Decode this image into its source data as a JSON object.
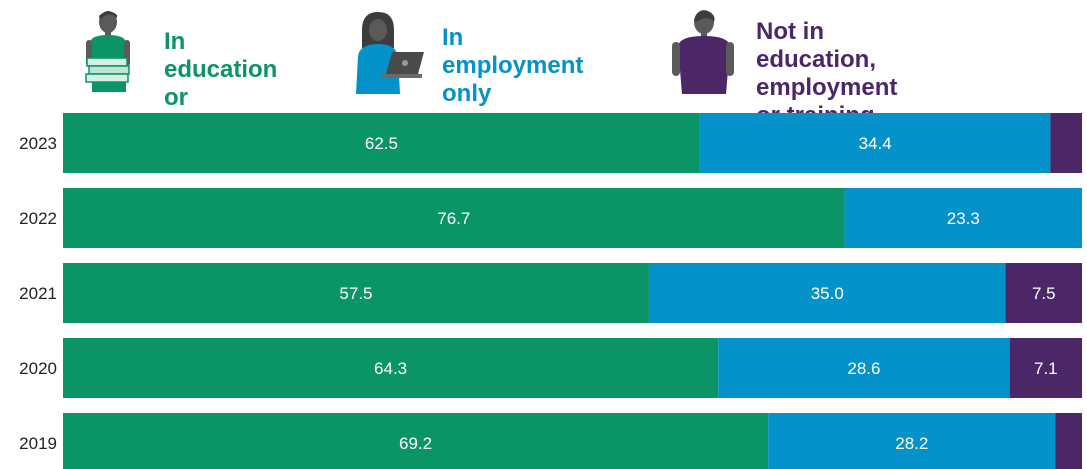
{
  "colors": {
    "education": "#0b9466",
    "employment": "#0591c9",
    "neet": "#4b2767",
    "icon_green": "#0b9466",
    "icon_blue": "#0591c9",
    "icon_purple": "#4b2767",
    "skin": "#5a5a5a",
    "bar_text": "#ffffff",
    "axis_text": "#222222"
  },
  "legend": [
    {
      "lines": [
        "In education",
        "or training"
      ],
      "icon": "student-with-books-icon"
    },
    {
      "lines": [
        "In employment",
        "only"
      ],
      "icon": "person-with-laptop-icon"
    },
    {
      "lines": [
        "Not in education,",
        "employment or training"
      ],
      "icon": "person-standing-icon"
    }
  ],
  "chart_data": {
    "type": "bar",
    "orientation": "horizontal",
    "stacked": true,
    "xlim": [
      0,
      100
    ],
    "categories": [
      "2023",
      "2022",
      "2021",
      "2020",
      "2019"
    ],
    "series": [
      {
        "name": "In education or training",
        "values": [
          62.5,
          76.7,
          57.5,
          64.3,
          69.2
        ],
        "labels": [
          "62.5",
          "76.7",
          "57.5",
          "64.3",
          "69.2"
        ]
      },
      {
        "name": "In employment only",
        "values": [
          34.4,
          23.3,
          35.0,
          28.6,
          28.2
        ],
        "labels": [
          "34.4",
          "23.3",
          "35.0",
          "28.6",
          "28.2"
        ]
      },
      {
        "name": "Not in education, employment or training",
        "values": [
          3.1,
          0.0,
          7.5,
          7.1,
          2.6
        ],
        "labels": [
          "",
          "",
          "7.5",
          "7.1",
          ""
        ]
      }
    ]
  }
}
